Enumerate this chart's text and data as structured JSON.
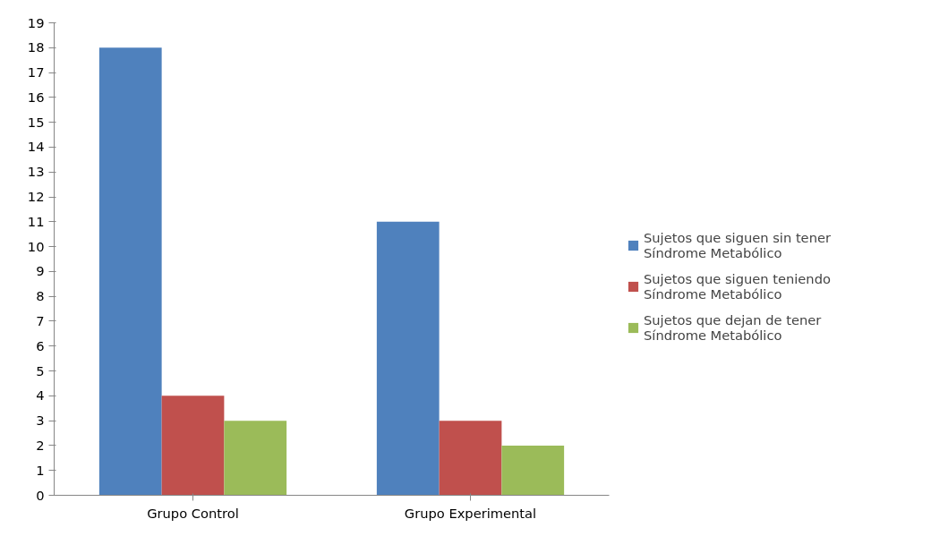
{
  "chart_data": {
    "type": "bar",
    "categories": [
      "Grupo Control",
      "Grupo Experimental"
    ],
    "series": [
      {
        "name": "Sujetos que siguen sin tener Síndrome Metabólico",
        "color": "#4f81bd",
        "values": [
          18,
          11
        ]
      },
      {
        "name": "Sujetos que siguen teniendo Síndrome Metabólico",
        "color": "#c0504d",
        "values": [
          4,
          3
        ]
      },
      {
        "name": "Sujetos que dejan de tener Síndrome Metabólico",
        "color": "#9bbb59",
        "values": [
          3,
          2
        ]
      }
    ],
    "ylim": [
      0,
      19
    ],
    "yticks": [
      0,
      1,
      2,
      3,
      4,
      5,
      6,
      7,
      8,
      9,
      10,
      11,
      12,
      13,
      14,
      15,
      16,
      17,
      18,
      19
    ],
    "grid": false,
    "legend": "right"
  }
}
